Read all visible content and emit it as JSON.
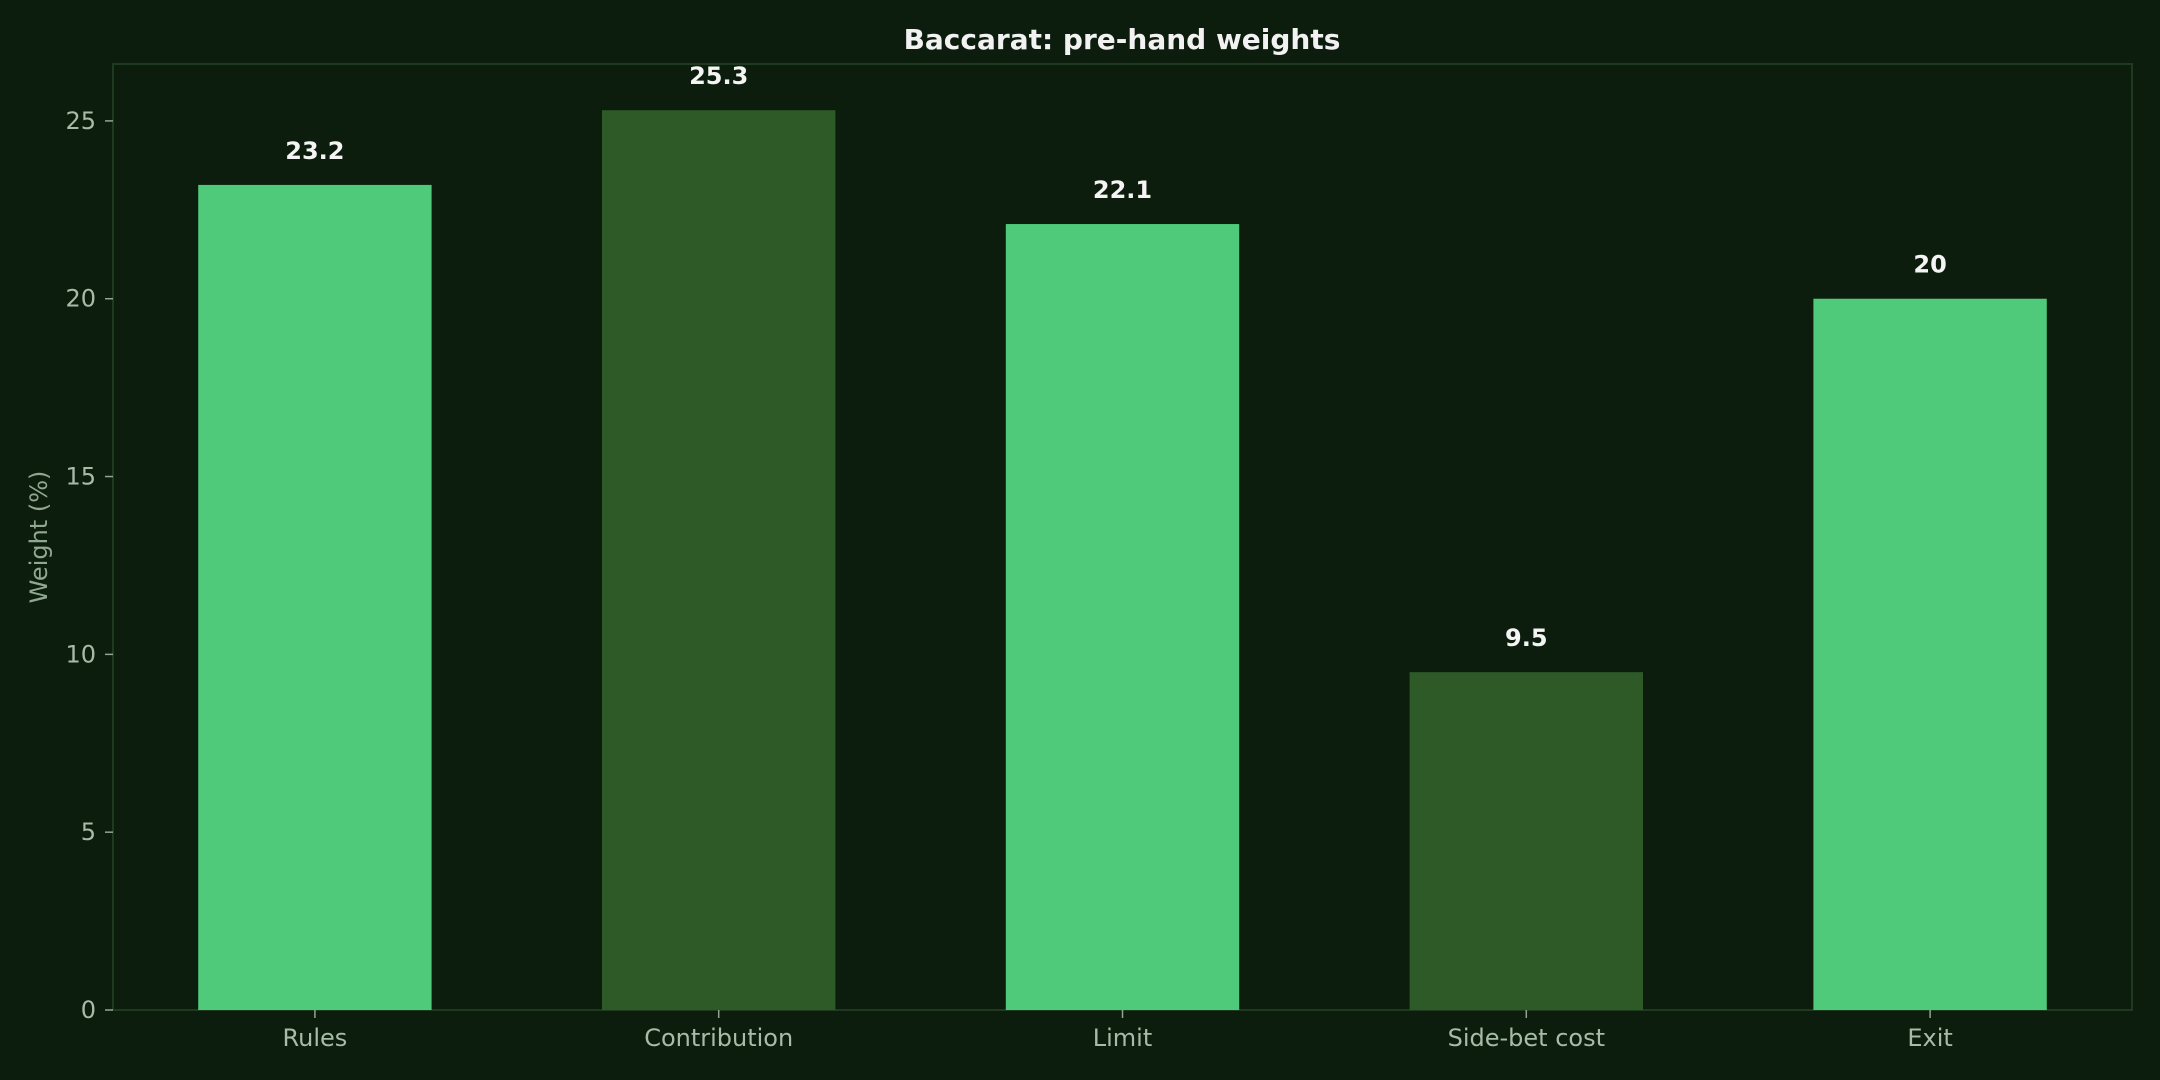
{
  "chart_data": {
    "type": "bar",
    "title": "Baccarat: pre-hand weights",
    "xlabel": "",
    "ylabel": "Weight (%)",
    "categories": [
      "Rules",
      "Contribution",
      "Limit",
      "Side-bet cost",
      "Exit"
    ],
    "values": [
      23.2,
      25.3,
      22.1,
      9.5,
      20
    ],
    "value_labels": [
      "23.2",
      "25.3",
      "22.1",
      "9.5",
      "20"
    ],
    "bar_colors": [
      "#4fc97a",
      "#2e5a28",
      "#4fc97a",
      "#2e5a28",
      "#4fc97a"
    ],
    "ylim": [
      0,
      26.6
    ],
    "yticks": [
      0,
      5,
      10,
      15,
      20,
      25
    ],
    "grid": false,
    "legend": "none"
  },
  "colors": {
    "background": "#0c1c0d",
    "highlight_bar": "#4fc97a",
    "muted_bar": "#2e5a28",
    "text": "#f2f2f2",
    "axis_text": "#a7bca7"
  }
}
